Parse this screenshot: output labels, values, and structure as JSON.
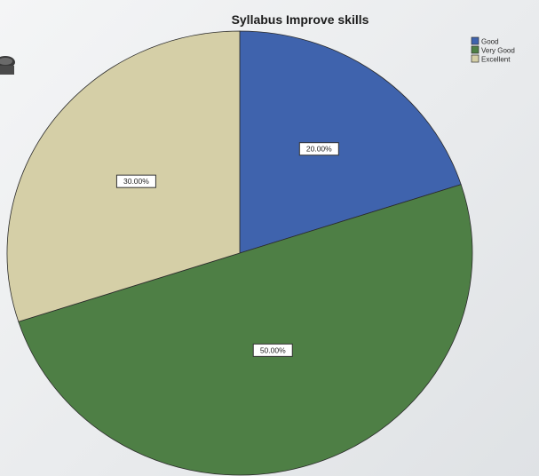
{
  "chart_data": {
    "type": "pie",
    "title": "Syllabus Improve skills",
    "categories": [
      "Good",
      "Very Good",
      "Excellent"
    ],
    "values": [
      20.0,
      50.0,
      30.0
    ],
    "labels": [
      "20.00%",
      "50.00%",
      "30.00%"
    ],
    "colors": [
      "#3f63ad",
      "#4e7f45",
      "#d5cfa7"
    ],
    "legend_position": "top-right",
    "start_angle_deg": 0,
    "direction": "clockwise"
  }
}
